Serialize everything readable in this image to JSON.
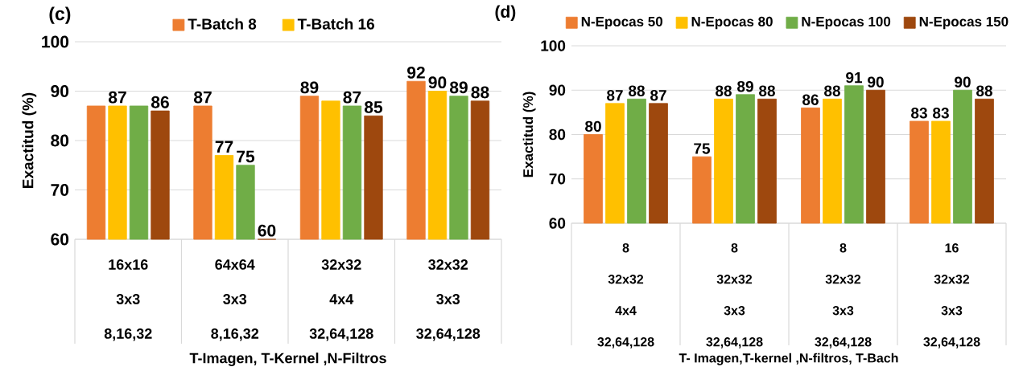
{
  "chart_data": [
    {
      "type": "bar",
      "title": "(c)",
      "xlabel": "T-Imagen, T-Kernel ,N-Filtros",
      "ylabel": "Exactitud (%)",
      "categories": [
        "16x16 3x3 8,16,32",
        "64x64 3x3 8,16,32",
        "32x32 4x4 32,64,128",
        "32x32 3x3 32,64,128"
      ],
      "series": [
        {
          "name": "T-Batch  8",
          "color": "#ed7d31",
          "values": [
            87,
            87,
            89,
            92
          ],
          "value_labels": [
            null,
            "87",
            "89",
            "92"
          ]
        },
        {
          "name": "T-Batch  16",
          "color": "#ffc000",
          "values": [
            87,
            77,
            88,
            90
          ],
          "value_labels": [
            "87",
            "77",
            null,
            "90"
          ]
        },
        {
          "color": "#70ad47",
          "values": [
            87,
            75,
            87,
            89
          ],
          "value_labels": [
            null,
            "75",
            "87",
            "89"
          ]
        },
        {
          "color": "#9e480e",
          "values": [
            86,
            60,
            85,
            88
          ],
          "value_labels": [
            "86",
            "60",
            "85",
            "88"
          ]
        }
      ],
      "ylim": [
        60,
        100
      ],
      "yticks": [
        60,
        70,
        80,
        90,
        100
      ],
      "grid": "y",
      "legend": "top"
    },
    {
      "type": "bar",
      "title": "(d)",
      "xlabel": "T- Imagen,T-kernel ,N-filtros, T-Bach",
      "ylabel": "Exactitud (%)",
      "categories": [
        "8 32x32 4x4 32,64,128",
        "8 32x32 3x3 32,64,128",
        "8 32x32 3x3 32,64,128",
        "16 32x32 3x3 32,64,128"
      ],
      "series": [
        {
          "name": "N-Epocas 50",
          "color": "#ed7d31",
          "values": [
            80,
            75,
            86,
            83
          ]
        },
        {
          "name": "N-Epocas 80",
          "color": "#ffc000",
          "values": [
            87,
            88,
            88,
            83
          ]
        },
        {
          "name": "N-Epocas 100",
          "color": "#70ad47",
          "values": [
            88,
            89,
            91,
            90
          ]
        },
        {
          "name": "N-Epocas 150",
          "color": "#9e480e",
          "values": [
            87,
            88,
            90,
            88
          ]
        }
      ],
      "ylim": [
        60,
        100
      ],
      "yticks": [
        60,
        70,
        80,
        90,
        100
      ],
      "grid": "y",
      "legend": "top",
      "data_labels": true
    }
  ]
}
